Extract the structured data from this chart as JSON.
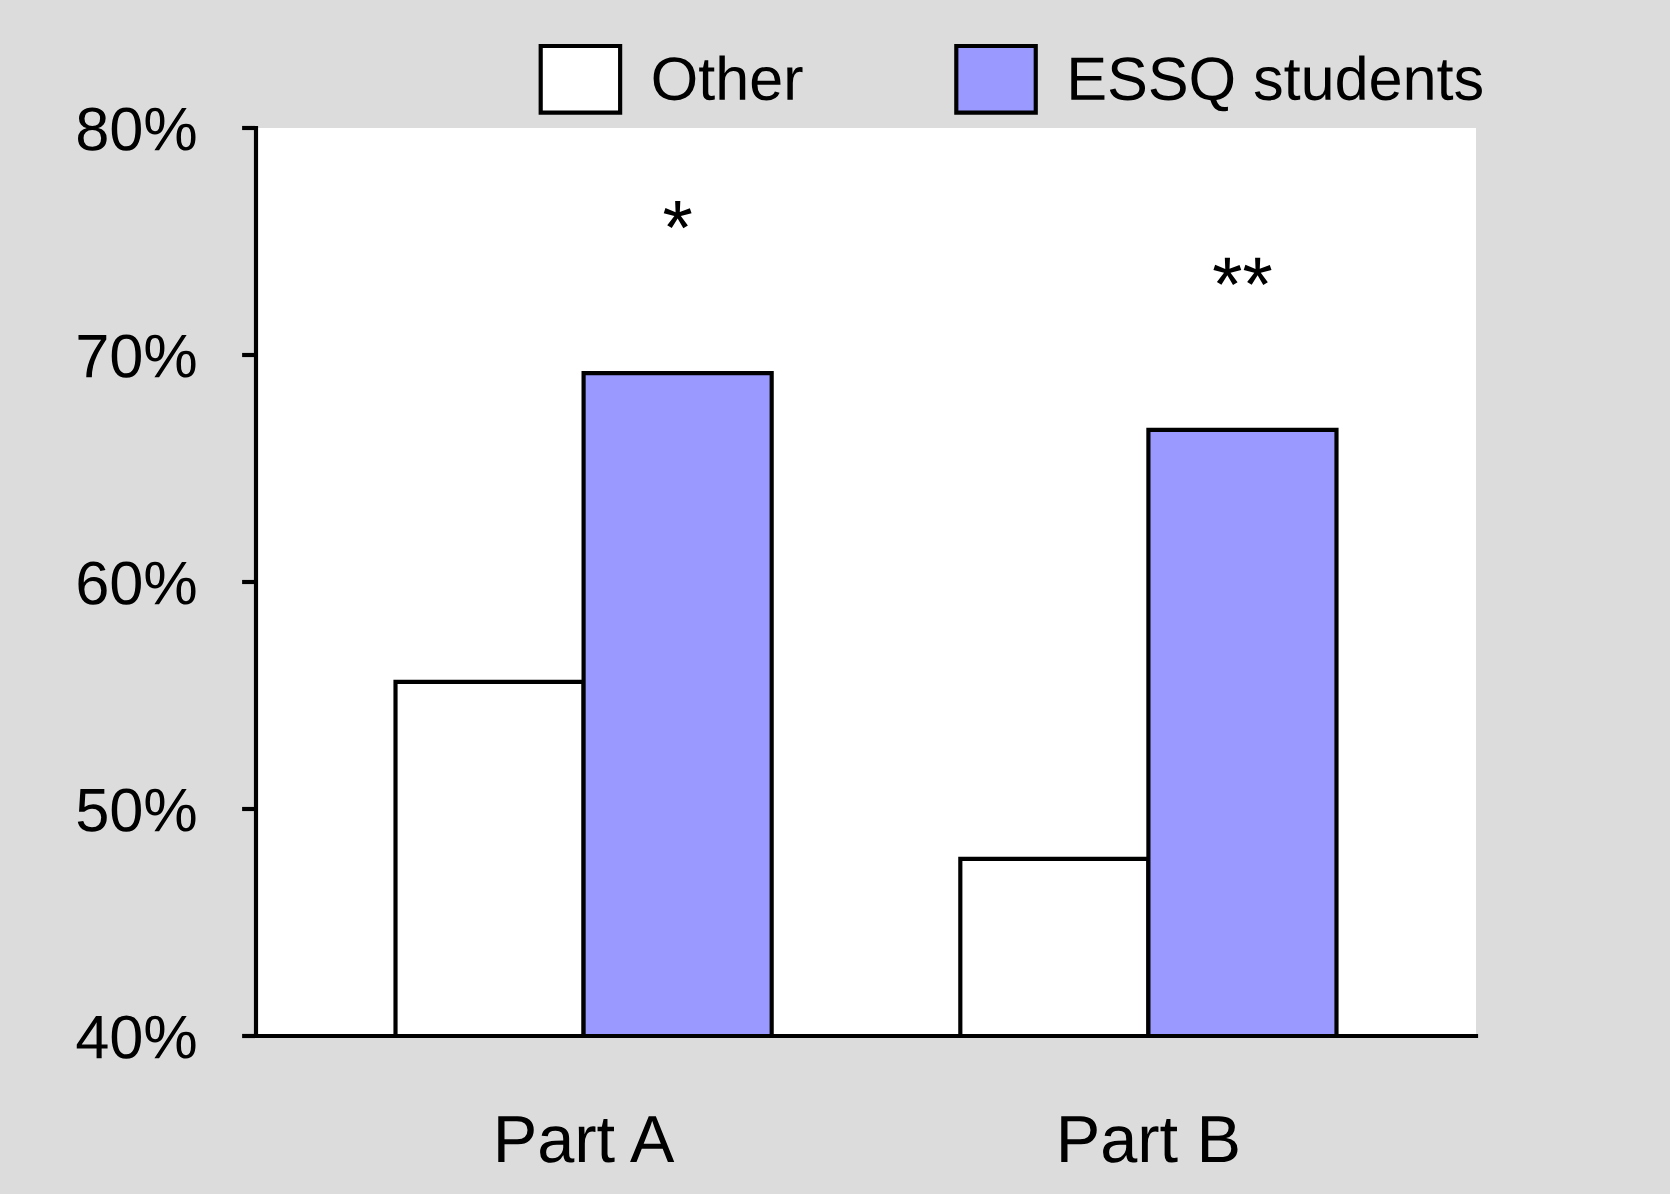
{
  "chart_data": {
    "type": "bar",
    "categories": [
      "Part A",
      "Part B"
    ],
    "series": [
      {
        "name": "Other",
        "color": "#ffffff",
        "values": [
          55.6,
          47.8
        ]
      },
      {
        "name": "ESSQ students",
        "color": "#9999ff",
        "values": [
          69.2,
          66.7
        ]
      }
    ],
    "ylim": [
      40,
      80
    ],
    "yticks": [
      {
        "value": 40,
        "label": "40%"
      },
      {
        "value": 50,
        "label": "50%"
      },
      {
        "value": 60,
        "label": "60%"
      },
      {
        "value": 70,
        "label": "70%"
      },
      {
        "value": 80,
        "label": "80%"
      }
    ],
    "annotations": [
      "*",
      "**"
    ],
    "legend": "top",
    "grid": false
  }
}
